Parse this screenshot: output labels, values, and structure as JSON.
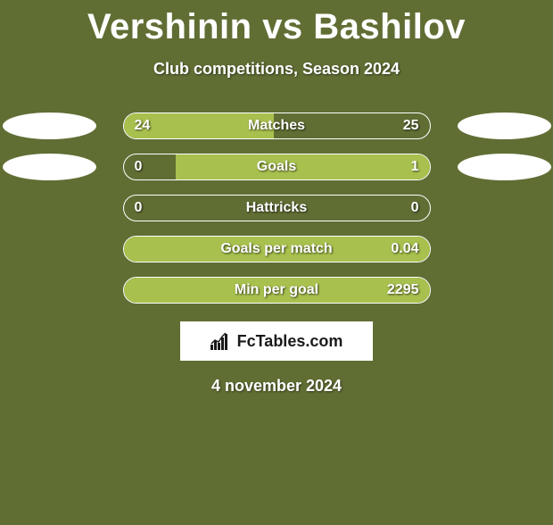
{
  "title": "Vershinin vs Bashilov",
  "subtitle": "Club competitions, Season 2024",
  "date": "4 november 2024",
  "logo_text": "FcTables.com",
  "background_color": "#606e34",
  "bar_fill_color": "#a8c14e",
  "bar_border_color": "#ffffff",
  "oval_color": "#ffffff",
  "text_color": "#ffffff",
  "rows": [
    {
      "label": "Matches",
      "left_value": "24",
      "right_value": "25",
      "left_raw": 24,
      "right_raw": 25,
      "fill_side": "left",
      "fill_percent": 49,
      "show_ovals": true
    },
    {
      "label": "Goals",
      "left_value": "0",
      "right_value": "1",
      "left_raw": 0,
      "right_raw": 1,
      "fill_side": "right",
      "fill_percent": 83,
      "show_ovals": true
    },
    {
      "label": "Hattricks",
      "left_value": "0",
      "right_value": "0",
      "left_raw": 0,
      "right_raw": 0,
      "fill_side": "none",
      "fill_percent": 0,
      "show_ovals": false
    },
    {
      "label": "Goals per match",
      "left_value": "",
      "right_value": "0.04",
      "left_raw": 0,
      "right_raw": 0.04,
      "fill_side": "right",
      "fill_percent": 100,
      "show_ovals": false
    },
    {
      "label": "Min per goal",
      "left_value": "",
      "right_value": "2295",
      "left_raw": 0,
      "right_raw": 2295,
      "fill_side": "right",
      "fill_percent": 100,
      "show_ovals": false
    }
  ]
}
